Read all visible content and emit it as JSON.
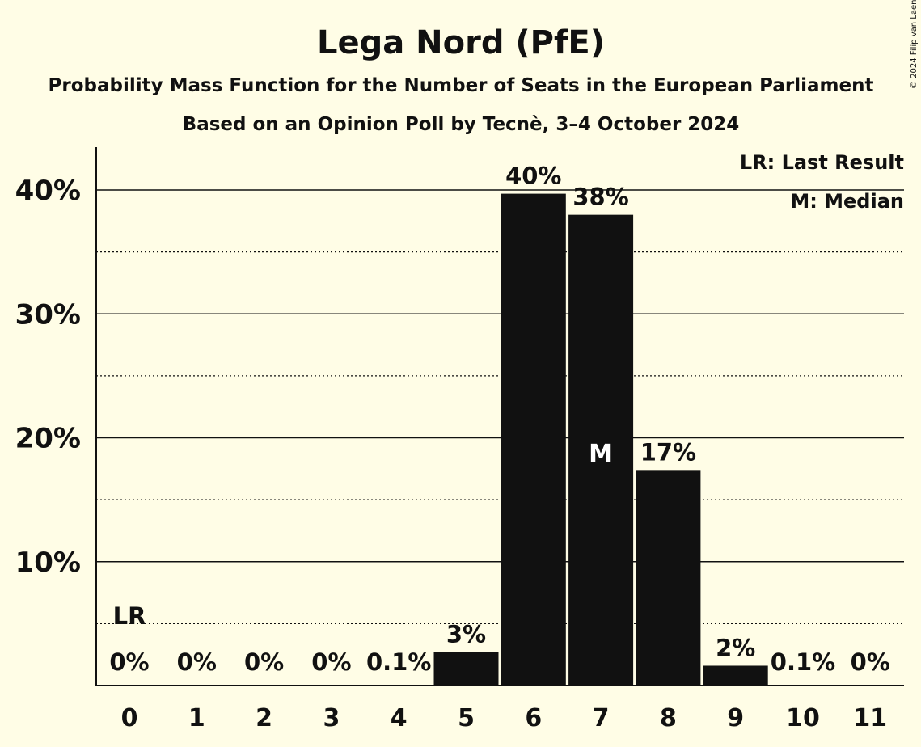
{
  "copyright": "© 2024 Filip van Laenen",
  "chart_data": {
    "type": "bar",
    "title": "Lega Nord (PfE)",
    "subtitle": "Probability Mass Function for the Number of Seats in the European Parliament",
    "subtitle2": "Based on an Opinion Poll by Tecnè, 3–4 October 2024",
    "categories": [
      "0",
      "1",
      "2",
      "3",
      "4",
      "5",
      "6",
      "7",
      "8",
      "9",
      "10",
      "11"
    ],
    "values": [
      0,
      0,
      0,
      0,
      0.1,
      2.7,
      39.7,
      38.0,
      17.4,
      1.6,
      0.1,
      0
    ],
    "labels": [
      "0%",
      "0%",
      "0%",
      "0%",
      "0.1%",
      "3%",
      "40%",
      "38%",
      "17%",
      "2%",
      "0.1%",
      "0%"
    ],
    "yticks": [
      10,
      20,
      30,
      40
    ],
    "ytick_labels": [
      "10%",
      "20%",
      "30%",
      "40%"
    ],
    "ylim": [
      0,
      43.5
    ],
    "grid": "solid at 10% steps, dotted at 5% midpoints",
    "last_result_index": 0,
    "median_index": 7,
    "last_result_marker": "LR",
    "median_marker": "M",
    "legend": [
      "LR: Last Result",
      "M: Median"
    ],
    "legend_position": "top-right",
    "bar_color": "#111111"
  }
}
